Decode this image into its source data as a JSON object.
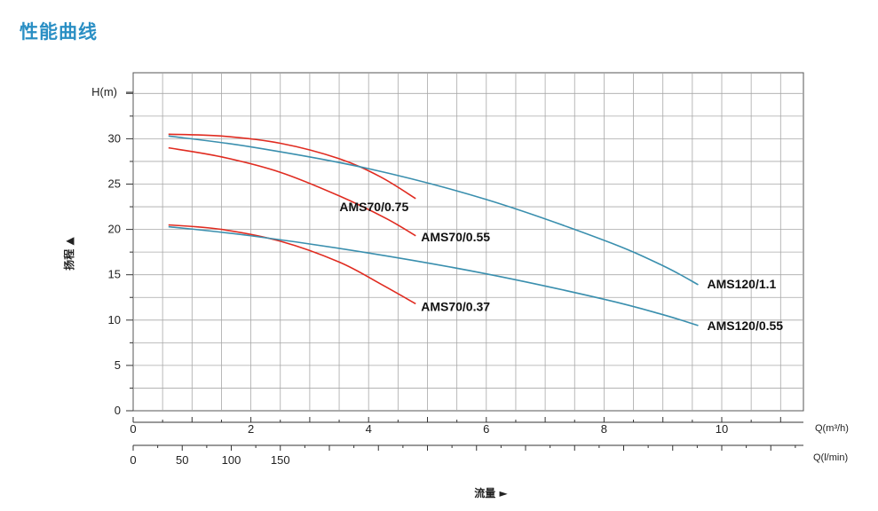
{
  "page": {
    "title": "性能曲线"
  },
  "colors": {
    "title": "#2a8fc4",
    "red_series": "#e02b20",
    "blue_series": "#3a8fae",
    "grid": "#a8a8a8"
  },
  "chart_data": {
    "type": "line",
    "ylabel_unit": "H(m)",
    "ylabel_cn": "扬程 ▲",
    "xlabel_unit_m3h": "Q(m³/h)",
    "xlabel_unit_lmin": "Q(l/min)",
    "xlabel_cn": "流量 ►",
    "xlim": [
      0,
      11.5
    ],
    "ylim": [
      0,
      37
    ],
    "x_ticks_m3h": [
      0,
      2,
      4,
      6,
      8,
      10
    ],
    "x_ticks_lmin": [
      0,
      50,
      100,
      150
    ],
    "y_ticks": [
      0,
      5,
      10,
      15,
      20,
      25,
      30
    ],
    "grid": true,
    "series": [
      {
        "name": "AMS70/0.75",
        "color": "red",
        "x": [
          0.6,
          1.5,
          2.5,
          3.5,
          4.2,
          4.8
        ],
        "y": [
          30.5,
          30.3,
          29.5,
          27.8,
          25.8,
          23.4
        ]
      },
      {
        "name": "AMS70/0.55",
        "color": "red",
        "x": [
          0.6,
          1.5,
          2.5,
          3.5,
          4.3,
          4.8
        ],
        "y": [
          29.0,
          28.0,
          26.3,
          23.7,
          21.2,
          19.3
        ]
      },
      {
        "name": "AMS70/0.37",
        "color": "red",
        "x": [
          0.6,
          1.5,
          2.5,
          3.5,
          4.2,
          4.8
        ],
        "y": [
          20.5,
          20.0,
          18.7,
          16.4,
          14.0,
          11.8
        ]
      },
      {
        "name": "AMS120/1.1",
        "color": "blue",
        "x": [
          0.6,
          2,
          4,
          6,
          8,
          9,
          9.6
        ],
        "y": [
          30.3,
          29.1,
          26.7,
          23.3,
          18.8,
          16.0,
          13.9
        ]
      },
      {
        "name": "AMS120/0.55",
        "color": "blue",
        "x": [
          0.6,
          2,
          4,
          6,
          8,
          9,
          9.6
        ],
        "y": [
          20.3,
          19.3,
          17.4,
          15.1,
          12.3,
          10.6,
          9.4
        ]
      }
    ]
  }
}
